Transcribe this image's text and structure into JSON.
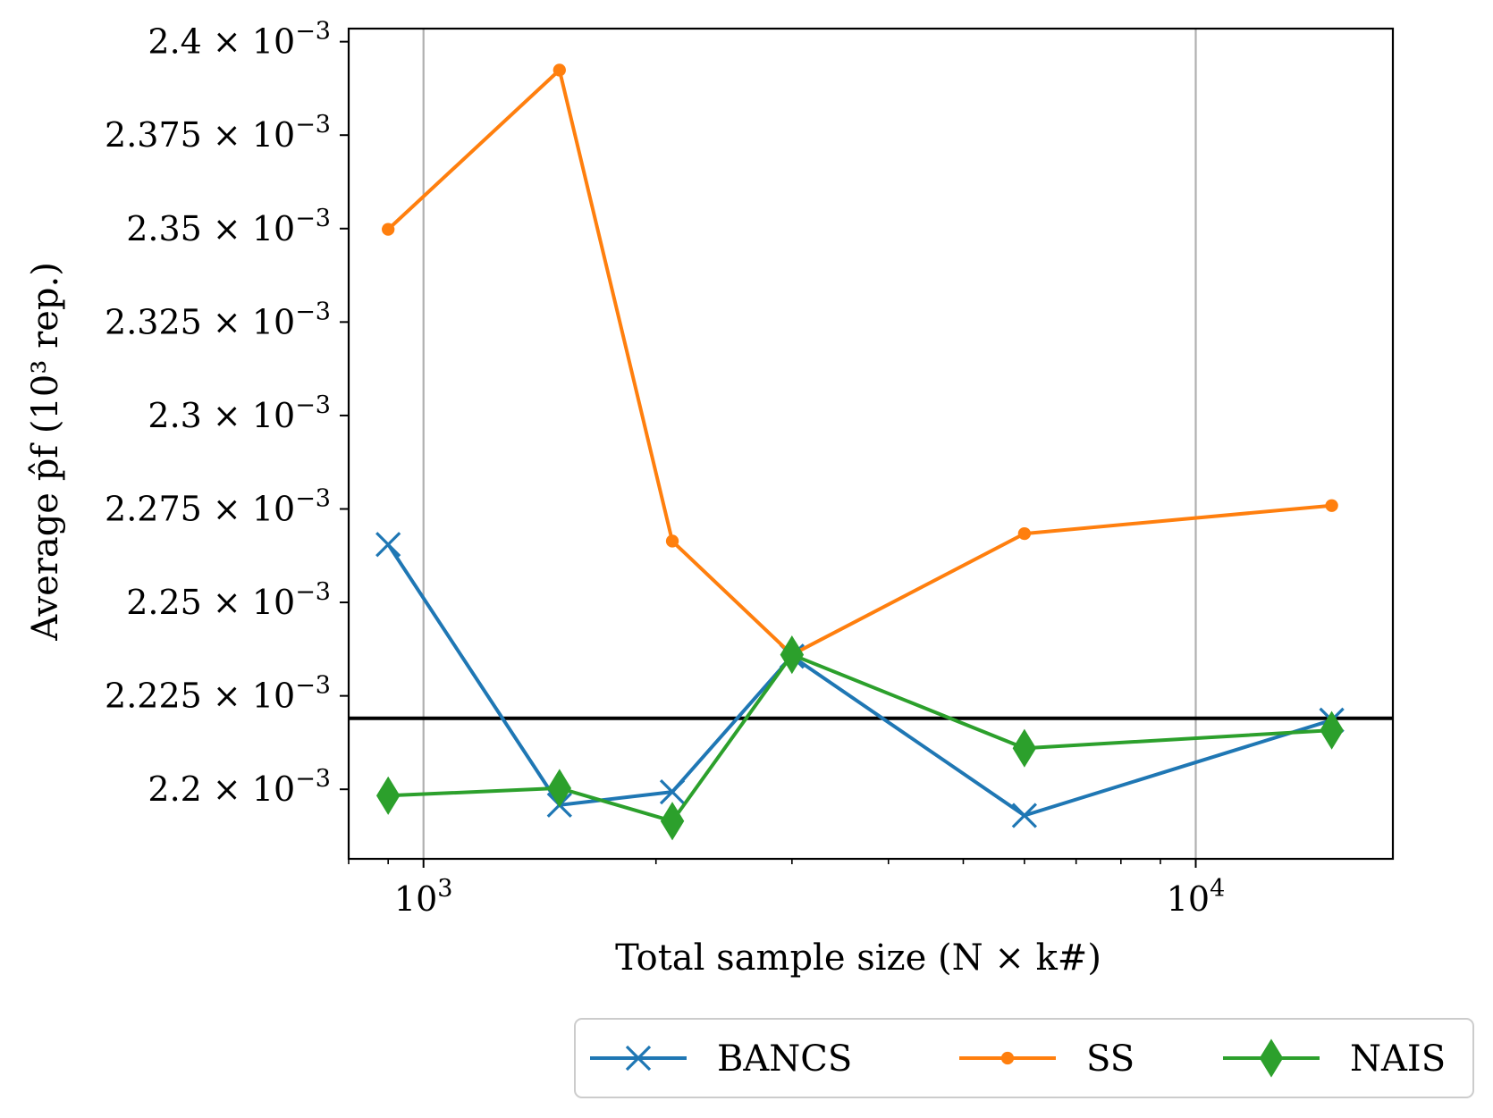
{
  "chart_data": {
    "type": "line",
    "xlabel": "Total sample size (N × k#)",
    "ylabel": "Average p̂f (10³ rep.)",
    "x_scale": "log",
    "xlim": [
      800,
      18000
    ],
    "ylim": [
      2.1814,
      2.4035
    ],
    "x_ticks": [
      {
        "value": 1000,
        "base": "10",
        "exp": "3"
      },
      {
        "value": 10000,
        "base": "10",
        "exp": "4"
      }
    ],
    "y_ticks": [
      {
        "value": 2.2,
        "label": "2.2 × 10",
        "exp": "−3"
      },
      {
        "value": 2.225,
        "label": "2.225 × 10",
        "exp": "−3"
      },
      {
        "value": 2.25,
        "label": "2.25 × 10",
        "exp": "−3"
      },
      {
        "value": 2.275,
        "label": "2.275 × 10",
        "exp": "−3"
      },
      {
        "value": 2.3,
        "label": "2.3 × 10",
        "exp": "−3"
      },
      {
        "value": 2.325,
        "label": "2.325 × 10",
        "exp": "−3"
      },
      {
        "value": 2.35,
        "label": "2.35 × 10",
        "exp": "−3"
      },
      {
        "value": 2.375,
        "label": "2.375 × 10",
        "exp": "−3"
      },
      {
        "value": 2.4,
        "label": "2.4 × 10",
        "exp": "−3"
      }
    ],
    "grid_x": true,
    "grid_y": false,
    "reference_line": {
      "y": 2.219,
      "color": "#000000"
    },
    "legend_position": "bottom-right-outside",
    "series": [
      {
        "name": "BANCS",
        "color": "#1f77b4",
        "marker": "x",
        "x": [
          900,
          1500,
          2100,
          3000,
          6000,
          15000
        ],
        "y": [
          2.2655,
          2.1958,
          2.1993,
          2.2356,
          2.193,
          2.2185
        ]
      },
      {
        "name": "SS",
        "color": "#ff7f0e",
        "marker": "dot",
        "x": [
          900,
          1500,
          2100,
          3000,
          6000,
          15000
        ],
        "y": [
          2.3498,
          2.3924,
          2.2664,
          2.236,
          2.2684,
          2.2759
        ]
      },
      {
        "name": "NAIS",
        "color": "#2ca02c",
        "marker": "diamond",
        "x": [
          900,
          1500,
          2100,
          3000,
          6000,
          15000
        ],
        "y": [
          2.1983,
          2.2003,
          2.1915,
          2.236,
          2.211,
          2.2158
        ]
      }
    ]
  }
}
